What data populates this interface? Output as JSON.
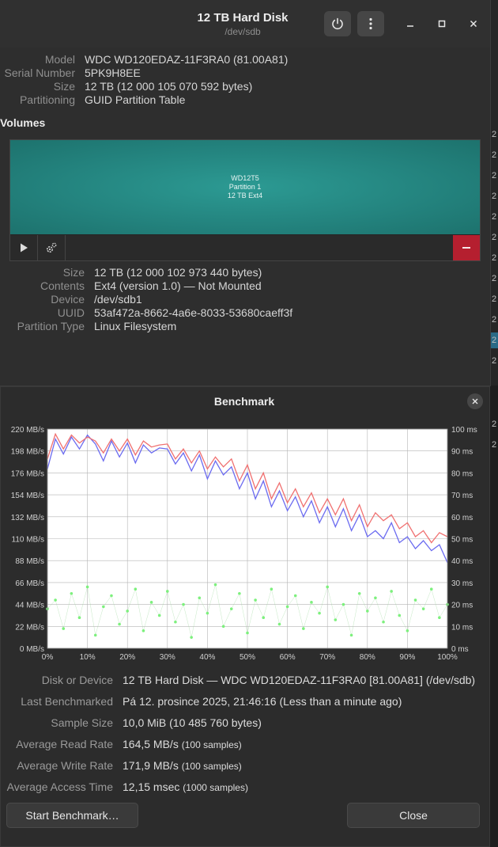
{
  "window": {
    "title": "12 TB Hard Disk",
    "subtitle": "/dev/sdb"
  },
  "drive": {
    "model_label": "Model",
    "model": "WDC WD120EDAZ-11F3RA0 (81.00A81)",
    "serial_label": "Serial Number",
    "serial": "5PK9H8EE",
    "size_label": "Size",
    "size": "12 TB (12 000 105 070 592 bytes)",
    "partitioning_label": "Partitioning",
    "partitioning": "GUID Partition Table"
  },
  "volumes": {
    "heading": "Volumes",
    "partition_name": "WD12T5",
    "partition_num": "Partition 1",
    "partition_desc": "12 TB Ext4"
  },
  "partition": {
    "size_label": "Size",
    "size": "12 TB (12 000 102 973 440 bytes)",
    "contents_label": "Contents",
    "contents": "Ext4 (version 1.0) — Not Mounted",
    "device_label": "Device",
    "device": "/dev/sdb1",
    "uuid_label": "UUID",
    "uuid": "53af472a-8662-4a6e-8033-53680caeff3f",
    "type_label": "Partition Type",
    "type": "Linux Filesystem"
  },
  "side_numbers": [
    "2",
    "2",
    "2",
    "2",
    "2",
    "2",
    "2",
    "2",
    "2",
    "2",
    "2",
    "2",
    "2",
    "2"
  ],
  "icons": {
    "power": "power-icon",
    "menu": "kebab-menu-icon",
    "minimize": "minimize-icon",
    "maximize": "maximize-icon",
    "close": "close-icon",
    "play": "play-icon",
    "gears": "gears-icon",
    "minus": "minus-icon"
  },
  "colors": {
    "partition": "#23827d",
    "delete": "#b51f2f",
    "read_series": "#6b6bf0",
    "write_series": "#f07070",
    "access_series": "#7df07d"
  },
  "benchmark": {
    "title": "Benchmark",
    "disk_label": "Disk or Device",
    "disk": "12 TB Hard Disk — WDC WD120EDAZ-11F3RA0 [81.00A81] (/dev/sdb)",
    "last_label": "Last Benchmarked",
    "last": "Pá 12. prosince 2025, 21:46:16 (Less than a minute ago)",
    "sample_label": "Sample Size",
    "sample": "10,0 MiB (10 485 760 bytes)",
    "read_label": "Average Read Rate",
    "read": "164,5 MB/s",
    "read_samples": "(100 samples)",
    "write_label": "Average Write Rate",
    "write": "171,9 MB/s",
    "write_samples": "(100 samples)",
    "access_label": "Average Access Time",
    "access": "12,15 msec",
    "access_samples": "(1000 samples)",
    "start_button": "Start Benchmark…",
    "close_button": "Close"
  },
  "chart_data": {
    "type": "line",
    "title": "",
    "xlabel": "",
    "ylabel": "",
    "y_left_ticks": [
      "220 MB/s",
      "198 MB/s",
      "176 MB/s",
      "154 MB/s",
      "132 MB/s",
      "110 MB/s",
      "88 MB/s",
      "66 MB/s",
      "44 MB/s",
      "22 MB/s",
      "0 MB/s"
    ],
    "y_right_ticks": [
      "100 ms",
      "90 ms",
      "80 ms",
      "70 ms",
      "60 ms",
      "50 ms",
      "40 ms",
      "30 ms",
      "20 ms",
      "10 ms",
      "0 ms"
    ],
    "x_ticks": [
      "0%",
      "10%",
      "20%",
      "30%",
      "40%",
      "50%",
      "60%",
      "70%",
      "80%",
      "90%",
      "100%"
    ],
    "xlim": [
      0,
      100
    ],
    "ylim_left": [
      0,
      220
    ],
    "ylim_right": [
      0,
      100
    ],
    "grid": true,
    "series": [
      {
        "axis": "left",
        "color": "#6b6bf0",
        "x": [
          0,
          2,
          4,
          6,
          8,
          10,
          12,
          14,
          16,
          18,
          20,
          22,
          24,
          26,
          28,
          30,
          32,
          34,
          36,
          38,
          40,
          42,
          44,
          46,
          48,
          50,
          52,
          54,
          56,
          58,
          60,
          62,
          64,
          66,
          68,
          70,
          72,
          74,
          76,
          78,
          80,
          82,
          84,
          86,
          88,
          90,
          92,
          94,
          96,
          98,
          100
        ],
        "values": [
          180,
          210,
          195,
          212,
          200,
          214,
          205,
          188,
          208,
          192,
          206,
          186,
          204,
          196,
          201,
          200,
          185,
          196,
          178,
          194,
          170,
          188,
          174,
          182,
          160,
          176,
          150,
          168,
          142,
          158,
          138,
          152,
          132,
          148,
          126,
          142,
          122,
          140,
          118,
          134,
          112,
          118,
          110,
          126,
          106,
          112,
          100,
          108,
          98,
          104,
          86
        ]
      },
      {
        "axis": "left",
        "color": "#f07070",
        "x": [
          0,
          2,
          4,
          6,
          8,
          10,
          12,
          14,
          16,
          18,
          20,
          22,
          24,
          26,
          28,
          30,
          32,
          34,
          36,
          38,
          40,
          42,
          44,
          46,
          48,
          50,
          52,
          54,
          56,
          58,
          60,
          62,
          64,
          66,
          68,
          70,
          72,
          74,
          76,
          78,
          80,
          82,
          84,
          86,
          88,
          90,
          92,
          94,
          96,
          98,
          100
        ],
        "values": [
          190,
          215,
          200,
          214,
          206,
          212,
          208,
          196,
          210,
          198,
          210,
          194,
          208,
          202,
          204,
          205,
          190,
          200,
          186,
          198,
          180,
          192,
          182,
          190,
          168,
          184,
          160,
          176,
          150,
          166,
          146,
          160,
          142,
          156,
          136,
          150,
          134,
          150,
          128,
          144,
          122,
          136,
          128,
          134,
          120,
          126,
          112,
          118,
          106,
          116,
          112
        ]
      },
      {
        "axis": "right",
        "color": "#7df07d",
        "x": [
          0,
          2,
          4,
          6,
          8,
          10,
          12,
          14,
          16,
          18,
          20,
          22,
          24,
          26,
          28,
          30,
          32,
          34,
          36,
          38,
          40,
          42,
          44,
          46,
          48,
          50,
          52,
          54,
          56,
          58,
          60,
          62,
          64,
          66,
          68,
          70,
          72,
          74,
          76,
          78,
          80,
          82,
          84,
          86,
          88,
          90,
          92,
          94,
          96,
          98,
          100
        ],
        "values": [
          18,
          22,
          9,
          25,
          14,
          28,
          6,
          19,
          24,
          11,
          17,
          27,
          8,
          21,
          15,
          26,
          12,
          20,
          5,
          23,
          16,
          29,
          10,
          18,
          25,
          7,
          22,
          14,
          27,
          11,
          19,
          24,
          9,
          21,
          16,
          28,
          13,
          20,
          6,
          25,
          17,
          23,
          12,
          26,
          15,
          8,
          22,
          18,
          27,
          14,
          20
        ]
      }
    ]
  }
}
